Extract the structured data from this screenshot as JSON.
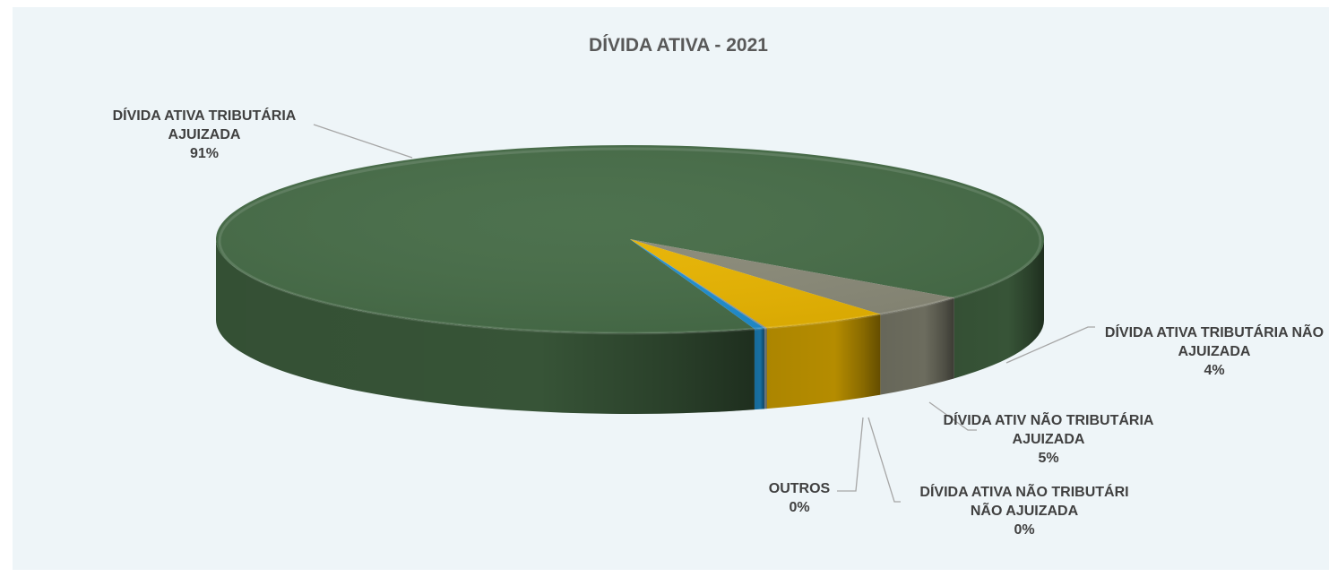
{
  "chart_data": {
    "type": "pie",
    "style": "3d",
    "title": "DÍVIDA ATIVA  - 2021",
    "slices": [
      {
        "label_lines": [
          "DÍVIDA ATIVA TRIBUTÁRIA",
          "AJUIZADA"
        ],
        "percent_label": "91%",
        "value": 91,
        "color": "#466c47"
      },
      {
        "label_lines": [
          "DÍVIDA ATIVA TRIBUTÁRIA NÃO",
          "AJUIZADA"
        ],
        "percent_label": "4%",
        "value": 4,
        "color": "#8a8a78"
      },
      {
        "label_lines": [
          "DÍVIDA ATIV NÃO TRIBUTÁRIA",
          "AJUIZADA"
        ],
        "percent_label": "5%",
        "value": 5,
        "color": "#e8b400"
      },
      {
        "label_lines": [
          "DÍVIDA ATIVA NÃO TRIBUTÁRI",
          "NÃO AJUIZADA"
        ],
        "percent_label": "0%",
        "value": 0.1,
        "color": "#8a9aa4"
      },
      {
        "label_lines": [
          "OUTROS"
        ],
        "percent_label": "0%",
        "value": 0.4,
        "color": "#1f8ecf"
      }
    ]
  }
}
